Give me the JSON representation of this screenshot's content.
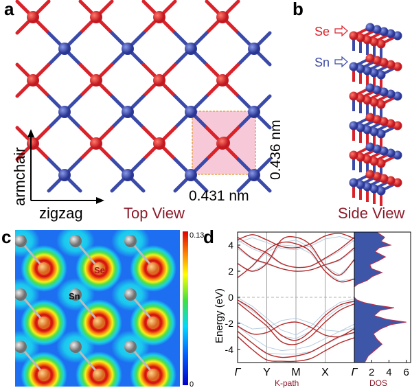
{
  "panels": {
    "a": {
      "letter": "a",
      "width_label": "0.431 nm",
      "height_label": "0.436 nm",
      "axis_armchair": "armchair",
      "axis_zigzag": "zigzag",
      "view_label": "Top View"
    },
    "b": {
      "letter": "b",
      "se_label": "Se",
      "sn_label": "Sn",
      "view_label": "Side View"
    },
    "c": {
      "letter": "c",
      "colorbar_max": "0.13",
      "colorbar_min": "0",
      "se_label": "Se",
      "sn_label": "Sn"
    },
    "d": {
      "letter": "d",
      "ylabel": "Energy (eV)",
      "xlabel": "K-path",
      "dos_label": "DOS"
    }
  },
  "colors": {
    "se_atom": "#d9222a",
    "sn_atom": "#3b4aa8",
    "label_dark_red": "#8b1a2a",
    "band_line": "#b52a2a",
    "dos_fill": "#3d56a8",
    "cell_fill": "#f6c8d8",
    "cell_border": "#e8a24a"
  },
  "chart_data": {
    "type": "line",
    "title": "",
    "xlabel": "K-path",
    "ylabel": "Energy (eV)",
    "ylim": [
      -5,
      5
    ],
    "y_ticks": [
      -4,
      -2,
      0,
      2,
      4
    ],
    "k_points": [
      "Γ",
      "Y",
      "M",
      "X",
      "Γ"
    ],
    "k_positions": [
      0,
      1,
      2,
      3,
      4
    ],
    "series": [
      {
        "x": [
          0,
          0.5,
          1,
          1.5,
          2,
          2.5,
          3,
          3.5,
          4
        ],
        "values": [
          4.6,
          3.9,
          3.4,
          2.6,
          2.3,
          2.4,
          3.0,
          3.7,
          4.6
        ]
      },
      {
        "x": [
          0,
          0.5,
          1,
          1.5,
          2,
          2.5,
          3,
          3.5,
          4
        ],
        "values": [
          3.9,
          3.0,
          2.6,
          2.2,
          2.0,
          2.1,
          2.5,
          2.9,
          3.8
        ]
      },
      {
        "x": [
          0,
          0.5,
          1,
          1.5,
          2,
          2.5,
          3,
          3.5,
          4
        ],
        "values": [
          2.6,
          2.0,
          2.6,
          4.4,
          4.6,
          4.0,
          2.4,
          1.7,
          2.9
        ]
      },
      {
        "x": [
          0,
          0.5,
          1,
          1.5,
          2,
          2.5,
          3,
          3.5,
          4
        ],
        "values": [
          1.5,
          2.4,
          3.6,
          4.2,
          4.1,
          3.5,
          2.0,
          1.2,
          1.4
        ]
      },
      {
        "x": [
          0,
          0.5,
          1,
          1.5,
          2,
          2.5,
          3,
          3.5,
          4
        ],
        "values": [
          4.4,
          4.8,
          4.4,
          3.9,
          3.8,
          4.1,
          4.7,
          4.9,
          4.5
        ]
      },
      {
        "x": [
          0,
          0.5,
          1,
          1.5,
          2,
          2.5,
          3,
          3.5,
          4
        ],
        "values": [
          -0.2,
          -0.9,
          -1.9,
          -2.9,
          -3.3,
          -2.6,
          -1.4,
          -0.6,
          -0.3
        ]
      },
      {
        "x": [
          0,
          0.5,
          1,
          1.5,
          2,
          2.5,
          3,
          3.5,
          4
        ],
        "values": [
          -0.4,
          -1.3,
          -2.2,
          -3.4,
          -3.6,
          -3.0,
          -1.9,
          -1.0,
          -0.5
        ]
      },
      {
        "x": [
          0,
          0.5,
          1,
          1.5,
          2,
          2.5,
          3,
          3.5,
          4
        ],
        "values": [
          -2.2,
          -2.8,
          -2.7,
          -2.1,
          -1.9,
          -2.3,
          -2.9,
          -3.0,
          -2.4
        ]
      },
      {
        "x": [
          0,
          0.5,
          1,
          1.5,
          2,
          2.5,
          3,
          3.5,
          4
        ],
        "values": [
          -2.6,
          -3.5,
          -4.3,
          -4.6,
          -4.5,
          -4.2,
          -3.6,
          -3.0,
          -2.7
        ]
      },
      {
        "x": [
          0,
          0.5,
          1,
          1.5,
          2,
          2.5,
          3,
          3.5,
          4
        ],
        "values": [
          -3.0,
          -4.0,
          -4.8,
          -4.9,
          -4.9,
          -4.7,
          -4.1,
          -3.5,
          -3.1
        ]
      }
    ],
    "dos": {
      "xlabel": "DOS",
      "x_ticks": [
        2,
        4,
        6
      ],
      "xlim": [
        0,
        6.5
      ],
      "energy": [
        -5,
        -4.5,
        -4,
        -3.6,
        -3.2,
        -2.8,
        -2.4,
        -2.1,
        -1.9,
        -1.7,
        -1.4,
        -1.0,
        -0.8,
        -0.6,
        -0.4,
        -0.2,
        0.0,
        0.4,
        0.8,
        1.0,
        1.3,
        1.6,
        1.9,
        2.2,
        2.5,
        2.8,
        3.1,
        3.5,
        3.8,
        4.0,
        4.3,
        4.6,
        5.0
      ],
      "values": [
        1.2,
        1.6,
        2.5,
        3.2,
        2.6,
        2.2,
        3.1,
        4.2,
        6.0,
        3.8,
        2.3,
        3.0,
        4.6,
        2.5,
        1.1,
        0.3,
        0.0,
        0.0,
        0.0,
        0.4,
        1.5,
        2.1,
        3.2,
        2.0,
        1.8,
        2.8,
        3.6,
        2.4,
        2.9,
        4.2,
        3.1,
        3.5,
        2.6
      ]
    }
  }
}
